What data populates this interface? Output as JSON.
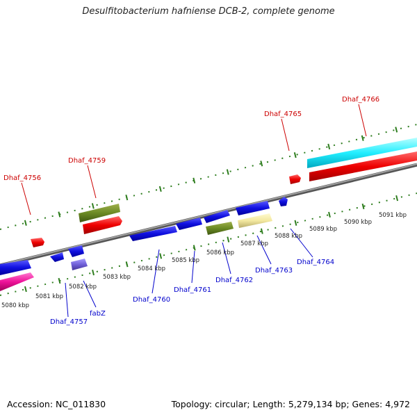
{
  "title": "Desulfitobacterium hafniense DCB-2, complete genome",
  "accession": "Accession: NC_011830",
  "summary": "Topology: circular; Length: 5,279,134 bp; Genes: 4,972",
  "colors": {
    "backbone": "#808080",
    "ticks": "#2e7d1e",
    "label_red": "#cc0000",
    "label_blue": "#0000cc",
    "leader_red": "#cc0000",
    "leader_blue": "#0000cc"
  },
  "scale_labels": [
    "5080 kbp",
    "5081 kbp",
    "5082 kbp",
    "5083 kbp",
    "5084 kbp",
    "5085 kbp",
    "5086 kbp",
    "5087 kbp",
    "5088 kbp",
    "5089 kbp",
    "5090 kbp",
    "5091 kbp"
  ],
  "top_labels": [
    "Dhaf_4756",
    "Dhaf_4759",
    "Dhaf_4765",
    "Dhaf_4766"
  ],
  "bottom_labels": [
    "Dhaf_4757",
    "fabZ",
    "Dhaf_4760",
    "Dhaf_4761",
    "Dhaf_4762",
    "Dhaf_4763",
    "Dhaf_4764"
  ]
}
